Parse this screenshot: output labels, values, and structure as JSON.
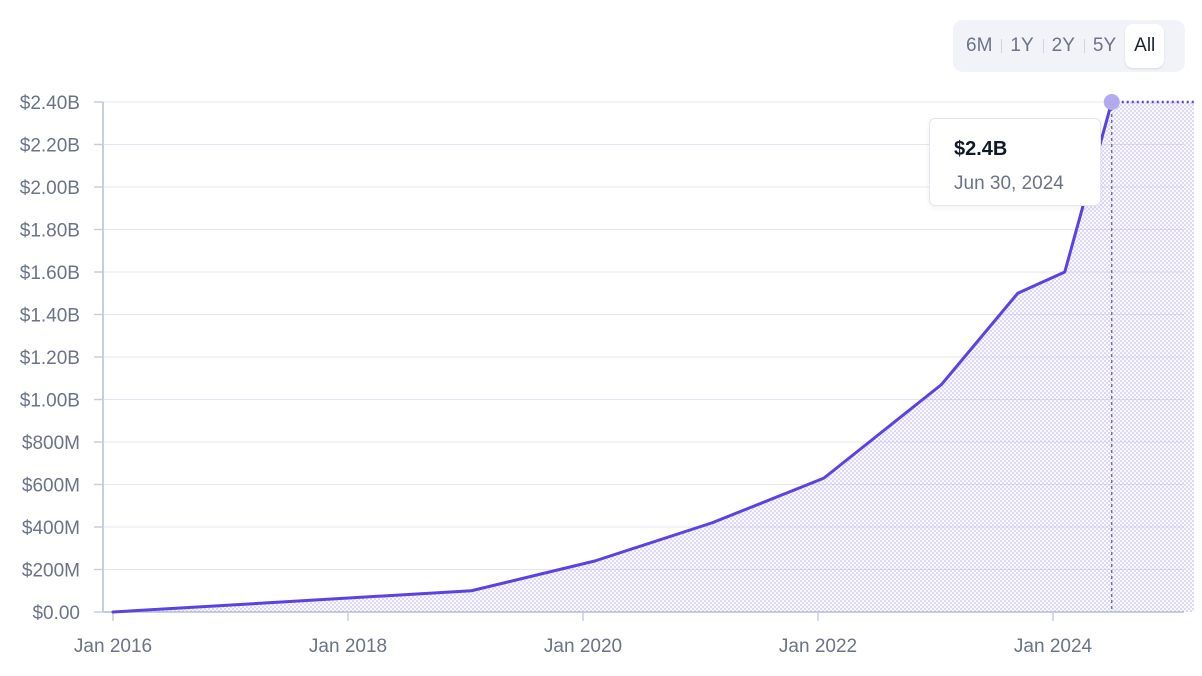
{
  "range_selector": {
    "options": [
      "6M",
      "1Y",
      "2Y",
      "5Y",
      "All"
    ],
    "selected": "All"
  },
  "tooltip": {
    "value": "$2.4B",
    "date": "Jun 30, 2024"
  },
  "colors": {
    "line": "#5b43e0",
    "fill": "#a89cf0",
    "marker": "#b3a9ef",
    "grid": "#e4e7f0",
    "axis": "#c9cede",
    "tick_text": "#6b7388"
  },
  "chart_data": {
    "type": "area",
    "y_ticks": [
      "$0.00",
      "$200M",
      "$400M",
      "$600M",
      "$800M",
      "$1.00B",
      "$1.20B",
      "$1.40B",
      "$1.60B",
      "$1.80B",
      "$2.00B",
      "$2.20B",
      "$2.40B"
    ],
    "x_ticks": [
      "Jan 2016",
      "Jan 2018",
      "Jan 2020",
      "Jan 2022",
      "Jan 2024"
    ],
    "x_tick_years": [
      2016,
      2018,
      2020,
      2022,
      2024
    ],
    "xlim": [
      2016.0,
      2025.2
    ],
    "ylim": [
      0,
      2.4
    ],
    "y_unit": "B",
    "grid": true,
    "series": [
      {
        "x": [
          2016.0,
          2019.05,
          2020.1,
          2021.1,
          2022.05,
          2023.05,
          2023.7,
          2024.1,
          2024.5
        ],
        "y": [
          0.0,
          0.1,
          0.24,
          0.42,
          0.63,
          1.07,
          1.5,
          1.6,
          2.4
        ]
      }
    ],
    "highlight": {
      "x": 2024.5,
      "y": 2.4
    },
    "extension": {
      "from_x": 2024.5,
      "to_x": 2025.2,
      "y": 2.4
    }
  }
}
